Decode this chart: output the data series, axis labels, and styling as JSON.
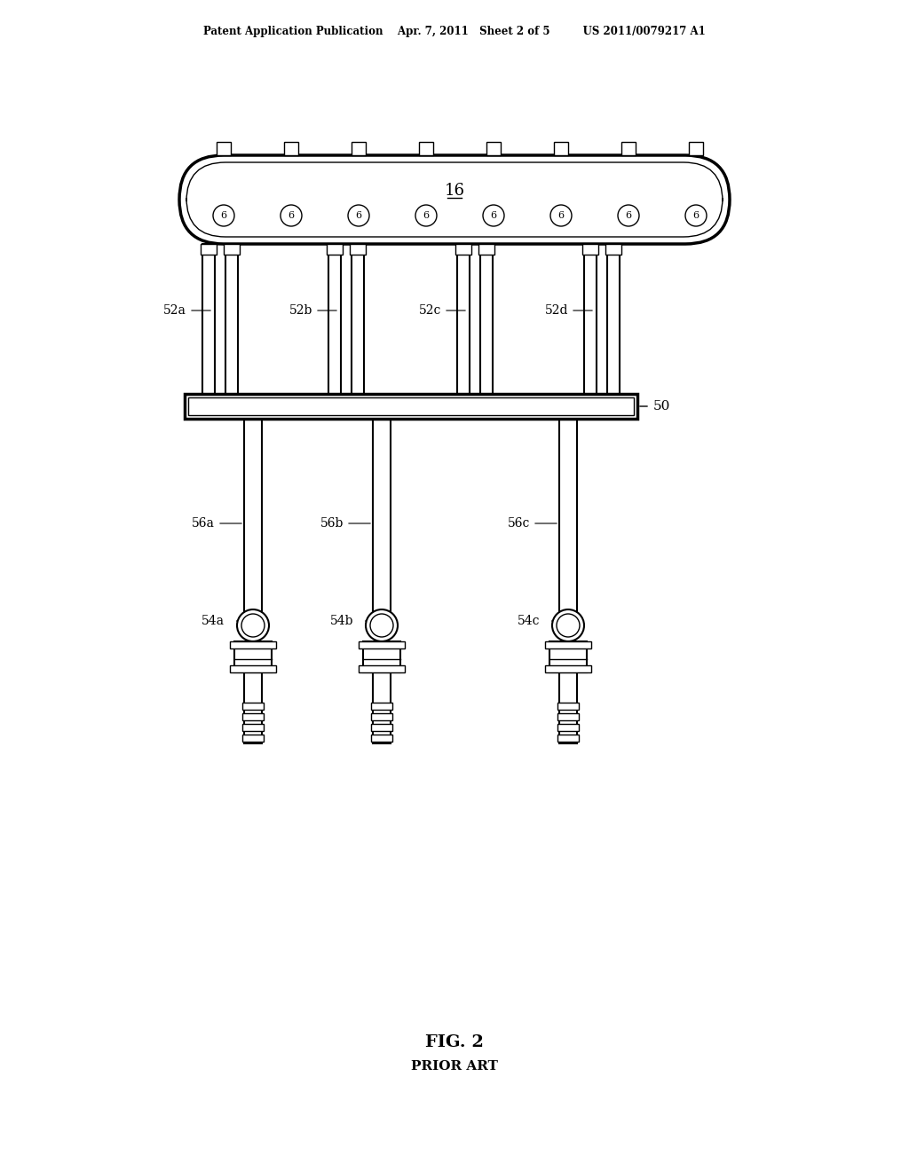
{
  "bg_color": "#ffffff",
  "line_color": "#000000",
  "header_text": "Patent Application Publication    Apr. 7, 2011   Sheet 2 of 5         US 2011/0079217 A1",
  "fig_label": "FIG. 2",
  "prior_art": "PRIOR ART",
  "label_16": "16",
  "label_50": "50",
  "label_52a": "52a",
  "label_52b": "52b",
  "label_52c": "52c",
  "label_52d": "52d",
  "label_56a": "56a",
  "label_56b": "56b",
  "label_56c": "56c",
  "label_54a": "54a",
  "label_54b": "54b",
  "label_54c": "54c"
}
